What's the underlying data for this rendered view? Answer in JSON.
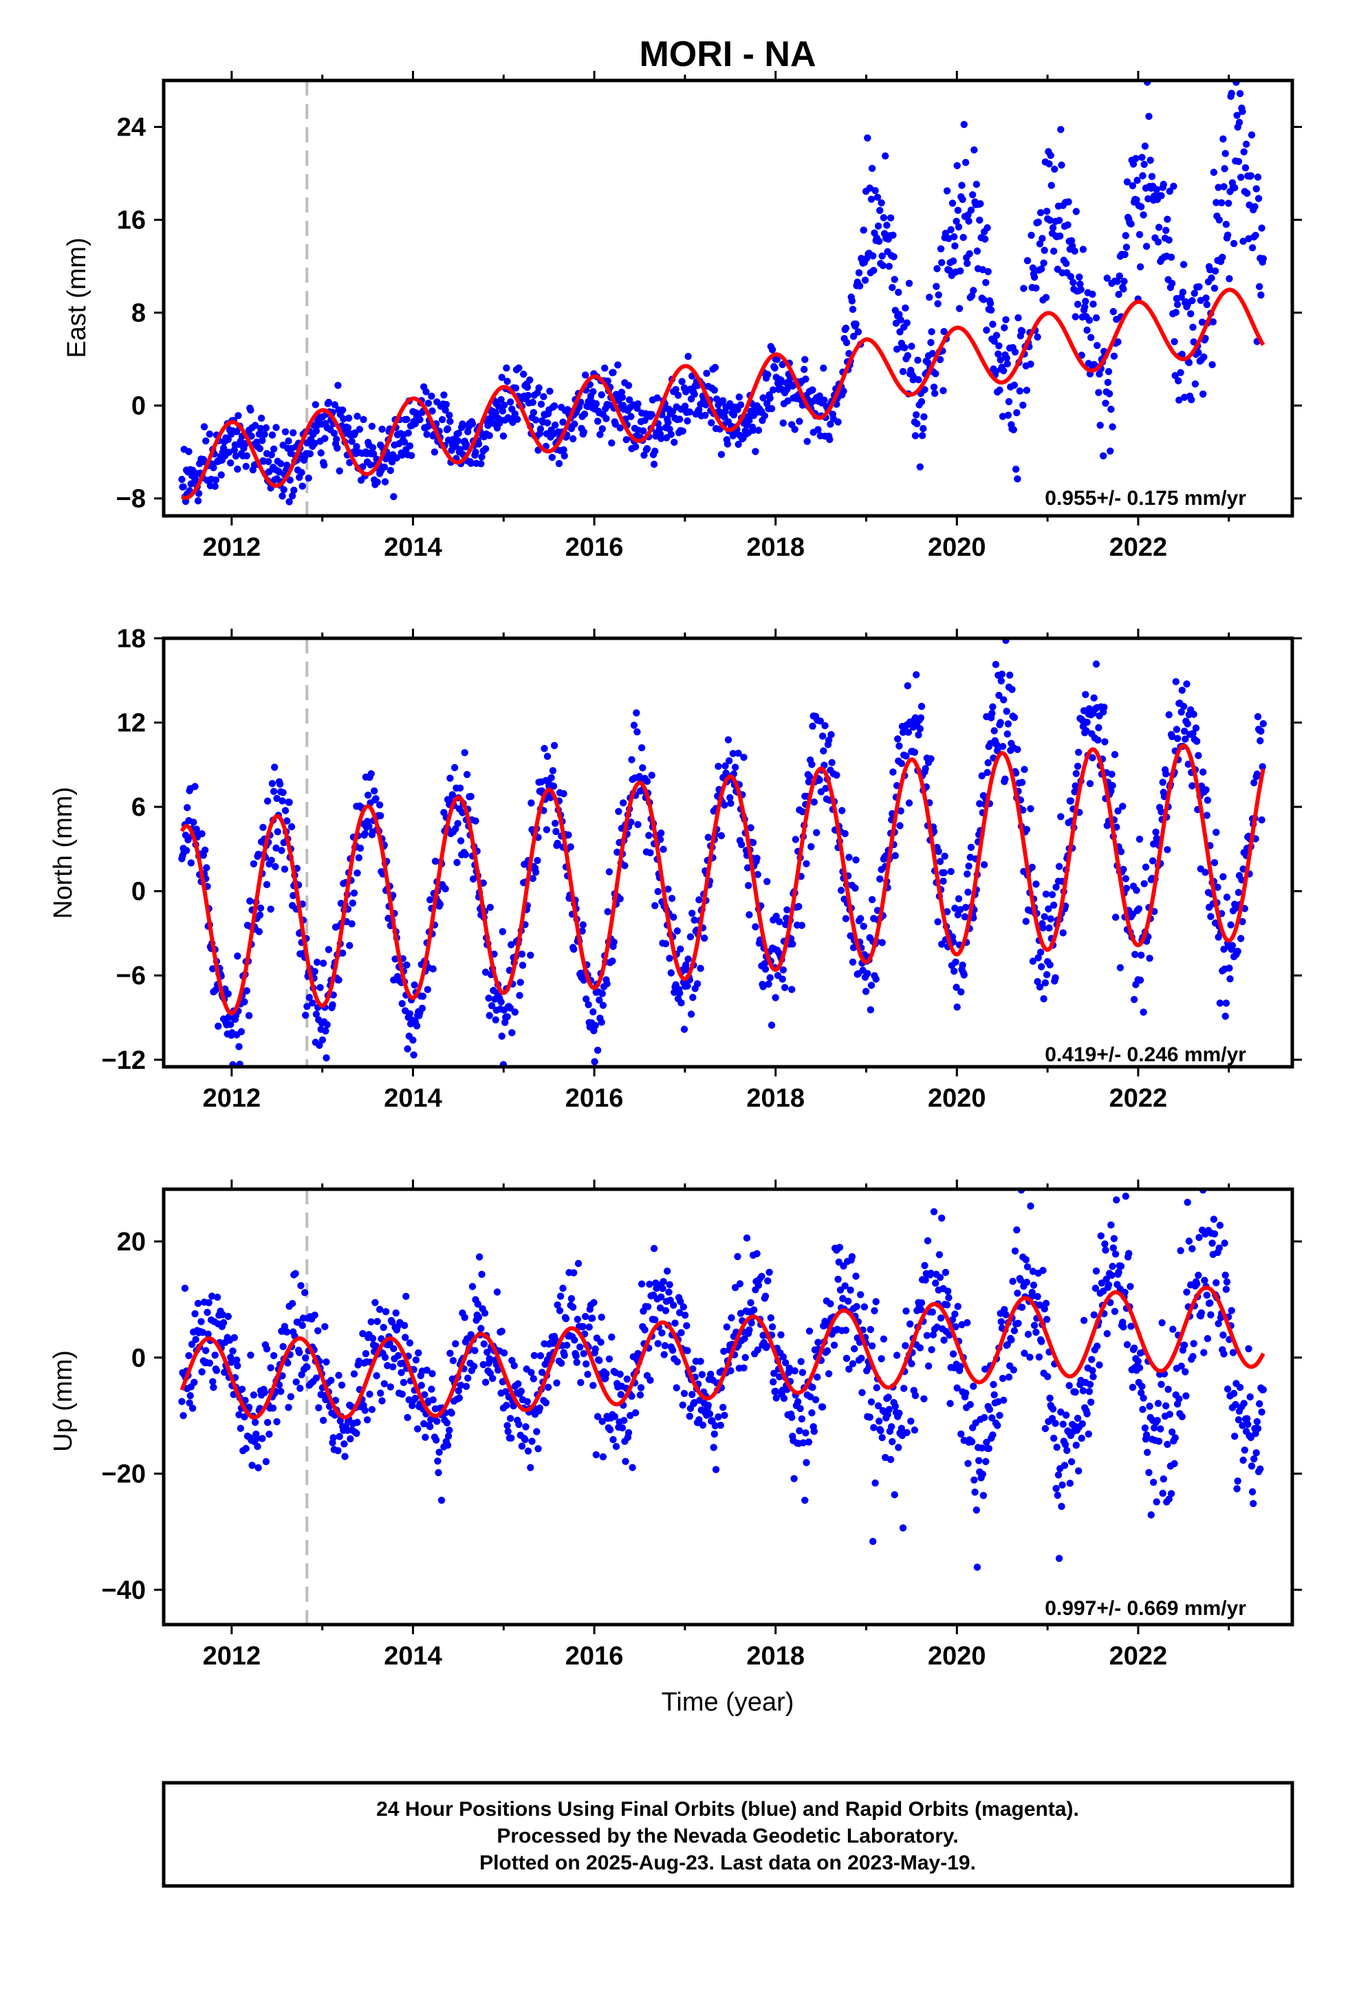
{
  "title": "MORI - NA",
  "colors": {
    "points": "#0000ff",
    "fit": "#ff0000",
    "dashed": "#bdbdbd",
    "frame": "#000000"
  },
  "chart_data": [
    {
      "type": "scatter",
      "id": "east",
      "ylabel": "East (mm)",
      "xlabel": "",
      "xlim": [
        2011.25,
        2023.7
      ],
      "ylim": [
        -9.5,
        28
      ],
      "xticks": [
        2012,
        2014,
        2016,
        2018,
        2020,
        2022
      ],
      "xtick_labels": [
        "2012",
        "2014",
        "2016",
        "2018",
        "2020",
        "2022"
      ],
      "yticks": [
        -8,
        0,
        8,
        16,
        24
      ],
      "ytick_labels": [
        "-8",
        "0",
        "8",
        "16",
        "24"
      ],
      "dashed_x": 2012.83,
      "rate": "0.955+/- 0.175 mm/yr",
      "data_range": [
        2011.45,
        2023.38
      ],
      "fit_trend": [
        [
          2011.45,
          -5.0
        ],
        [
          2012.8,
          -3.6
        ],
        [
          2014.0,
          -2.4
        ],
        [
          2015.0,
          -1.4
        ],
        [
          2016.0,
          -0.5
        ],
        [
          2017.0,
          0.4
        ],
        [
          2018.0,
          1.4
        ],
        [
          2018.5,
          1.9
        ],
        [
          2019.0,
          3.0
        ],
        [
          2020.0,
          4.1
        ],
        [
          2021.0,
          5.2
        ],
        [
          2022.0,
          6.3
        ],
        [
          2023.38,
          7.4
        ]
      ],
      "fit_amp": [
        [
          2011.45,
          3.0
        ],
        [
          2018.4,
          3.0
        ],
        [
          2019.2,
          2.6
        ],
        [
          2020.2,
          2.6
        ],
        [
          2021.2,
          2.8
        ],
        [
          2022.2,
          2.6
        ],
        [
          2023.38,
          3.0
        ]
      ],
      "fit_phase": 2012.0,
      "points_trend": [
        [
          2011.45,
          -5.0
        ],
        [
          2013.0,
          -3.5
        ],
        [
          2014.0,
          -2.5
        ],
        [
          2015.0,
          -1.0
        ],
        [
          2016.0,
          -0.6
        ],
        [
          2017.0,
          -1.0
        ],
        [
          2018.0,
          0.5
        ],
        [
          2018.6,
          0.5
        ],
        [
          2018.9,
          8.0
        ],
        [
          2020.0,
          9.0
        ],
        [
          2021.0,
          10.0
        ],
        [
          2022.0,
          11.0
        ],
        [
          2023.38,
          12.5
        ]
      ],
      "points_amp": [
        [
          2011.45,
          1.5
        ],
        [
          2018.6,
          1.5
        ],
        [
          2018.9,
          7.0
        ],
        [
          2020.0,
          7.0
        ],
        [
          2021.0,
          7.0
        ],
        [
          2022.0,
          7.5
        ],
        [
          2023.38,
          9.0
        ]
      ],
      "points_phase": 2019.1,
      "points_noise": [
        [
          2011.45,
          1.4
        ],
        [
          2018.6,
          1.4
        ],
        [
          2018.9,
          3.0
        ],
        [
          2023.38,
          3.5
        ]
      ]
    },
    {
      "type": "scatter",
      "id": "north",
      "ylabel": "North (mm)",
      "xlabel": "",
      "xlim": [
        2011.25,
        2023.7
      ],
      "ylim": [
        -12.5,
        18
      ],
      "xticks": [
        2012,
        2014,
        2016,
        2018,
        2020,
        2022
      ],
      "xtick_labels": [
        "2012",
        "2014",
        "2016",
        "2018",
        "2020",
        "2022"
      ],
      "yticks": [
        -12,
        -6,
        0,
        6,
        12,
        18
      ],
      "ytick_labels": [
        "-12",
        "-6",
        "0",
        "6",
        "12",
        "18"
      ],
      "dashed_x": 2012.83,
      "rate": "0.419+/- 0.246 mm/yr",
      "data_range": [
        2011.45,
        2023.38
      ],
      "fit_trend": [
        [
          2011.45,
          -2.2
        ],
        [
          2014.0,
          -0.6
        ],
        [
          2016.0,
          0.3
        ],
        [
          2018.0,
          1.4
        ],
        [
          2020.0,
          2.6
        ],
        [
          2023.38,
          3.6
        ]
      ],
      "fit_amp": [
        [
          2011.45,
          6.8
        ],
        [
          2014.0,
          7.0
        ],
        [
          2016.0,
          7.2
        ],
        [
          2018.0,
          7.0
        ],
        [
          2020.0,
          7.1
        ],
        [
          2023.38,
          7.0
        ]
      ],
      "fit_phase": 2011.5,
      "points_trend": [
        [
          2011.45,
          -2.2
        ],
        [
          2014.0,
          -1.0
        ],
        [
          2016.0,
          0.0
        ],
        [
          2018.0,
          1.4
        ],
        [
          2020.0,
          4.0
        ],
        [
          2023.38,
          4.2
        ]
      ],
      "points_amp": [
        [
          2011.45,
          7.0
        ],
        [
          2014.0,
          7.5
        ],
        [
          2016.0,
          8.0
        ],
        [
          2018.0,
          7.0
        ],
        [
          2020.0,
          8.5
        ],
        [
          2023.38,
          8.0
        ]
      ],
      "points_phase": 2011.5,
      "points_noise": [
        [
          2011.45,
          1.8
        ],
        [
          2019.0,
          2.0
        ],
        [
          2023.38,
          2.5
        ]
      ]
    },
    {
      "type": "scatter",
      "id": "up",
      "ylabel": "Up (mm)",
      "xlabel": "Time (year)",
      "xlim": [
        2011.25,
        2023.7
      ],
      "ylim": [
        -46,
        29
      ],
      "xticks": [
        2012,
        2014,
        2016,
        2018,
        2020,
        2022
      ],
      "xtick_labels": [
        "2012",
        "2014",
        "2016",
        "2018",
        "2020",
        "2022"
      ],
      "yticks": [
        -40,
        -20,
        0,
        20
      ],
      "ytick_labels": [
        "-40",
        "-20",
        "0",
        "20"
      ],
      "dashed_x": 2012.83,
      "rate": "0.997+/- 0.669 mm/yr",
      "data_range": [
        2011.45,
        2023.38
      ],
      "fit_trend": [
        [
          2011.45,
          -3.5
        ],
        [
          2014.0,
          -3.5
        ],
        [
          2016.0,
          -1.5
        ],
        [
          2018.0,
          0.5
        ],
        [
          2020.0,
          2.5
        ],
        [
          2022.0,
          4.5
        ],
        [
          2023.38,
          5.5
        ]
      ],
      "fit_amp": [
        [
          2011.45,
          6.8
        ],
        [
          2014.0,
          6.8
        ],
        [
          2016.0,
          6.8
        ],
        [
          2018.0,
          6.8
        ],
        [
          2020.0,
          7.0
        ],
        [
          2023.38,
          7.0
        ]
      ],
      "fit_phase": 2011.75,
      "points_trend": [
        [
          2011.45,
          -3.5
        ],
        [
          2014.0,
          -3.5
        ],
        [
          2016.0,
          -1.0
        ],
        [
          2018.0,
          0.5
        ],
        [
          2019.0,
          0.0
        ],
        [
          2020.0,
          -1.0
        ],
        [
          2022.0,
          0.0
        ],
        [
          2023.38,
          2.0
        ]
      ],
      "points_amp": [
        [
          2011.45,
          7.0
        ],
        [
          2016.0,
          8.0
        ],
        [
          2019.0,
          10.0
        ],
        [
          2020.0,
          14.0
        ],
        [
          2022.0,
          15.0
        ],
        [
          2023.38,
          14.0
        ]
      ],
      "points_phase": 2011.75,
      "points_noise": [
        [
          2011.45,
          4.5
        ],
        [
          2018.0,
          5.0
        ],
        [
          2020.0,
          6.5
        ],
        [
          2023.38,
          7.0
        ]
      ]
    }
  ],
  "footer": {
    "line1": "24 Hour Positions Using Final Orbits (blue) and Rapid Orbits (magenta).",
    "line2": "Processed by the Nevada Geodetic Laboratory.",
    "line3": "Plotted on 2025-Aug-23. Last data on 2023-May-19."
  }
}
